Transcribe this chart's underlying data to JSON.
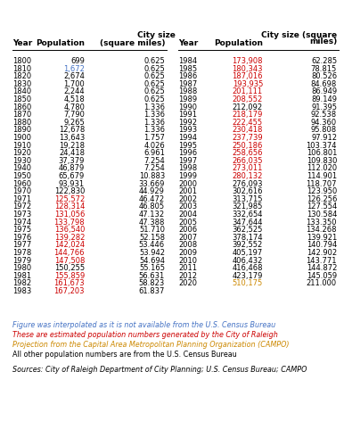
{
  "left_data": [
    {
      "year": "1800",
      "pop": "699",
      "size": "0.625",
      "pop_color": "black"
    },
    {
      "year": "1810",
      "pop": "1,672",
      "size": "0.625",
      "pop_color": "#4472c4"
    },
    {
      "year": "1820",
      "pop": "2,674",
      "size": "0.625",
      "pop_color": "black"
    },
    {
      "year": "1830",
      "pop": "1,700",
      "size": "0.625",
      "pop_color": "black"
    },
    {
      "year": "1840",
      "pop": "2,244",
      "size": "0.625",
      "pop_color": "black"
    },
    {
      "year": "1850",
      "pop": "4,518",
      "size": "0.625",
      "pop_color": "black"
    },
    {
      "year": "1860",
      "pop": "4,780",
      "size": "1.336",
      "pop_color": "black"
    },
    {
      "year": "1870",
      "pop": "7,790",
      "size": "1.336",
      "pop_color": "black"
    },
    {
      "year": "1880",
      "pop": "9,265",
      "size": "1.336",
      "pop_color": "black"
    },
    {
      "year": "1890",
      "pop": "12,678",
      "size": "1.336",
      "pop_color": "black"
    },
    {
      "year": "1900",
      "pop": "13,643",
      "size": "1.757",
      "pop_color": "black"
    },
    {
      "year": "1910",
      "pop": "19,218",
      "size": "4.026",
      "pop_color": "black"
    },
    {
      "year": "1920",
      "pop": "24,418",
      "size": "6.961",
      "pop_color": "black"
    },
    {
      "year": "1930",
      "pop": "37,379",
      "size": "7.254",
      "pop_color": "black"
    },
    {
      "year": "1940",
      "pop": "46,879",
      "size": "7.254",
      "pop_color": "black"
    },
    {
      "year": "1950",
      "pop": "65,679",
      "size": "10.883",
      "pop_color": "black"
    },
    {
      "year": "1960",
      "pop": "93,931",
      "size": "33.669",
      "pop_color": "black"
    },
    {
      "year": "1970",
      "pop": "122,830",
      "size": "44.929",
      "pop_color": "black"
    },
    {
      "year": "1971",
      "pop": "125,572",
      "size": "46.472",
      "pop_color": "#cc0000"
    },
    {
      "year": "1972",
      "pop": "128,314",
      "size": "46.805",
      "pop_color": "#cc0000"
    },
    {
      "year": "1973",
      "pop": "131,056",
      "size": "47.132",
      "pop_color": "#cc0000"
    },
    {
      "year": "1974",
      "pop": "133,798",
      "size": "47.388",
      "pop_color": "#cc0000"
    },
    {
      "year": "1975",
      "pop": "136,540",
      "size": "51.710",
      "pop_color": "#cc0000"
    },
    {
      "year": "1976",
      "pop": "139,282",
      "size": "52.158",
      "pop_color": "#cc0000"
    },
    {
      "year": "1977",
      "pop": "142,024",
      "size": "53.446",
      "pop_color": "#cc0000"
    },
    {
      "year": "1978",
      "pop": "144,766",
      "size": "53.942",
      "pop_color": "#cc0000"
    },
    {
      "year": "1979",
      "pop": "147,508",
      "size": "54.694",
      "pop_color": "#cc0000"
    },
    {
      "year": "1980",
      "pop": "150,255",
      "size": "55.165",
      "pop_color": "black"
    },
    {
      "year": "1981",
      "pop": "155,859",
      "size": "56.631",
      "pop_color": "#cc0000"
    },
    {
      "year": "1982",
      "pop": "161,673",
      "size": "58.823",
      "pop_color": "#cc0000"
    },
    {
      "year": "1983",
      "pop": "167,203",
      "size": "61.837",
      "pop_color": "#cc0000"
    }
  ],
  "right_data": [
    {
      "year": "1984",
      "pop": "173,908",
      "size": "62.285",
      "pop_color": "#cc0000"
    },
    {
      "year": "1985",
      "pop": "180,343",
      "size": "78.815",
      "pop_color": "#cc0000"
    },
    {
      "year": "1986",
      "pop": "187,016",
      "size": "80.526",
      "pop_color": "#cc0000"
    },
    {
      "year": "1987",
      "pop": "193,935",
      "size": "84.698",
      "pop_color": "#cc0000"
    },
    {
      "year": "1988",
      "pop": "201,111",
      "size": "86.949",
      "pop_color": "#cc0000"
    },
    {
      "year": "1989",
      "pop": "208,552",
      "size": "89.149",
      "pop_color": "#cc0000"
    },
    {
      "year": "1990",
      "pop": "212,092",
      "size": "91.395",
      "pop_color": "black"
    },
    {
      "year": "1991",
      "pop": "218,179",
      "size": "92.538",
      "pop_color": "#cc0000"
    },
    {
      "year": "1992",
      "pop": "222,455",
      "size": "94.360",
      "pop_color": "#cc0000"
    },
    {
      "year": "1993",
      "pop": "230,418",
      "size": "95.808",
      "pop_color": "#cc0000"
    },
    {
      "year": "1994",
      "pop": "237,739",
      "size": "97.912",
      "pop_color": "#cc0000"
    },
    {
      "year": "1995",
      "pop": "250,186",
      "size": "103.374",
      "pop_color": "#cc0000"
    },
    {
      "year": "1996",
      "pop": "258,656",
      "size": "106.801",
      "pop_color": "#cc0000"
    },
    {
      "year": "1997",
      "pop": "266,035",
      "size": "109.830",
      "pop_color": "#cc0000"
    },
    {
      "year": "1998",
      "pop": "273,011",
      "size": "112.020",
      "pop_color": "#cc0000"
    },
    {
      "year": "1999",
      "pop": "280,132",
      "size": "114.901",
      "pop_color": "#cc0000"
    },
    {
      "year": "2000",
      "pop": "276,093",
      "size": "118.707",
      "pop_color": "black"
    },
    {
      "year": "2001",
      "pop": "302,616",
      "size": "123.950",
      "pop_color": "black"
    },
    {
      "year": "2002",
      "pop": "313,715",
      "size": "126.256",
      "pop_color": "black"
    },
    {
      "year": "2003",
      "pop": "321,985",
      "size": "127.554",
      "pop_color": "black"
    },
    {
      "year": "2004",
      "pop": "332,654",
      "size": "130.584",
      "pop_color": "black"
    },
    {
      "year": "2005",
      "pop": "347,644",
      "size": "133.350",
      "pop_color": "black"
    },
    {
      "year": "2006",
      "pop": "362,525",
      "size": "134.268",
      "pop_color": "black"
    },
    {
      "year": "2007",
      "pop": "378,174",
      "size": "139.921",
      "pop_color": "black"
    },
    {
      "year": "2008",
      "pop": "392,552",
      "size": "140.794",
      "pop_color": "black"
    },
    {
      "year": "2009",
      "pop": "405,197",
      "size": "142.902",
      "pop_color": "black"
    },
    {
      "year": "2010",
      "pop": "406,432",
      "size": "143.771",
      "pop_color": "black"
    },
    {
      "year": "2011",
      "pop": "416,468",
      "size": "144.872",
      "pop_color": "black"
    },
    {
      "year": "2012",
      "pop": "423,179",
      "size": "145.059",
      "pop_color": "black"
    },
    {
      "year": "2020",
      "pop": "510,175",
      "size": "211.000",
      "pop_color": "#cc8800"
    }
  ],
  "note1_color": "#4472c4",
  "note2_color": "#cc0000",
  "note3_color": "#cc8800",
  "note4_color": "black",
  "note1": "Figure was interpolated as it is not available from the U.S. Census Bureau",
  "note2": "These are estimated population numbers generated by the City of Raleigh",
  "note3": "Projection from the Capital Area Metropolitan Planning Organization (CAMPO)",
  "note4": "All other population numbers are from the U.S. Census Bureau",
  "sources": "Sources: City of Raleigh Department of City Planning; U.S. Census Bureau; CAMPO",
  "fig_width": 3.86,
  "fig_height": 5.0,
  "dpi": 100
}
